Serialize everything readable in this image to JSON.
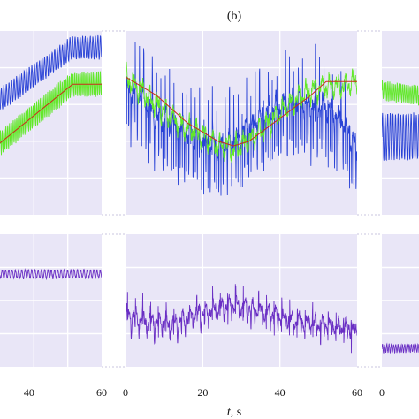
{
  "panel_label": "(b)",
  "xlabel_var": "t",
  "xlabel_unit": ", s",
  "colors": {
    "background": "#e9e6f7",
    "grid": "#ffffff",
    "blue": "#2a43d6",
    "green": "#62e82a",
    "red": "#cc2a1a",
    "purple": "#6a2fc4"
  },
  "chart_data": [
    {
      "type": "line",
      "panel": "left-top",
      "xlim": [
        32,
        60
      ],
      "ylim": [
        -1,
        1
      ],
      "grid": true,
      "xticks": [
        40,
        60
      ],
      "series": [
        {
          "color": "blue",
          "kind": "ramp-oscillation",
          "x": [
            32,
            52,
            60
          ],
          "center": [
            0.25,
            0.82,
            0.82
          ],
          "amplitude": 0.12,
          "period": 0.7
        },
        {
          "color": "green",
          "kind": "ramp-oscillation",
          "x": [
            32,
            52,
            60
          ],
          "center": [
            -0.22,
            0.42,
            0.42
          ],
          "amplitude": 0.13,
          "period": 0.5
        },
        {
          "color": "red",
          "kind": "line",
          "x": [
            32,
            52,
            60
          ],
          "y": [
            -0.22,
            0.42,
            0.42
          ]
        }
      ]
    },
    {
      "type": "line",
      "panel": "mid-top",
      "xlim": [
        0,
        60
      ],
      "ylim": [
        -1,
        1
      ],
      "grid": true,
      "xticks": [
        0,
        20,
        40,
        60
      ],
      "series": [
        {
          "color": "blue",
          "kind": "noisy",
          "x": [
            0,
            4,
            8,
            12,
            16,
            20,
            24,
            28,
            32,
            36,
            40,
            44,
            48,
            52,
            56,
            60
          ],
          "y": [
            0.4,
            0.3,
            0.05,
            0.0,
            -0.1,
            -0.2,
            -0.25,
            -0.2,
            -0.05,
            0.1,
            0.2,
            0.25,
            0.2,
            0.15,
            0.05,
            -0.3
          ],
          "spikes": 18
        },
        {
          "color": "green",
          "kind": "noisy",
          "x": [
            0,
            4,
            8,
            12,
            16,
            20,
            24,
            28,
            32,
            36,
            40,
            44,
            48,
            52,
            56,
            60
          ],
          "y": [
            0.5,
            0.35,
            0.2,
            0.05,
            -0.05,
            -0.15,
            -0.25,
            -0.28,
            -0.2,
            -0.05,
            0.1,
            0.25,
            0.35,
            0.4,
            0.4,
            0.45
          ],
          "spikes": 0
        },
        {
          "color": "red",
          "kind": "line",
          "x": [
            0,
            8,
            16,
            24,
            28,
            32,
            40,
            48,
            52,
            60
          ],
          "y": [
            0.5,
            0.3,
            0.0,
            -0.2,
            -0.25,
            -0.2,
            0.05,
            0.3,
            0.45,
            0.45
          ]
        }
      ]
    },
    {
      "type": "line",
      "panel": "right-top",
      "xlim": [
        0,
        10
      ],
      "ylim": [
        -1,
        1
      ],
      "grid": true,
      "xticks": [
        0
      ],
      "series": [
        {
          "color": "blue",
          "kind": "oscillation",
          "x": [
            0,
            10
          ],
          "center": [
            -0.15,
            -0.15
          ],
          "amplitude": 0.25,
          "period": 0.7
        },
        {
          "color": "green",
          "kind": "oscillation",
          "x": [
            0,
            10
          ],
          "center": [
            0.35,
            0.3
          ],
          "amplitude": 0.1,
          "period": 0.5
        }
      ]
    },
    {
      "type": "line",
      "panel": "left-bottom",
      "xlim": [
        32,
        60
      ],
      "ylim": [
        -1,
        1
      ],
      "grid": true,
      "series": [
        {
          "color": "purple",
          "kind": "oscillation",
          "x": [
            32,
            60
          ],
          "center": [
            0.4,
            0.4
          ],
          "amplitude": 0.06,
          "period": 0.9
        }
      ]
    },
    {
      "type": "line",
      "panel": "mid-bottom",
      "xlim": [
        0,
        60
      ],
      "ylim": [
        -1,
        1
      ],
      "grid": true,
      "series": [
        {
          "color": "purple",
          "kind": "noisy",
          "x": [
            0,
            6,
            12,
            18,
            24,
            28,
            32,
            38,
            44,
            50,
            56,
            60
          ],
          "y": [
            -0.2,
            -0.3,
            -0.35,
            -0.2,
            -0.1,
            -0.05,
            -0.1,
            -0.2,
            -0.3,
            -0.35,
            -0.4,
            -0.45
          ],
          "spikes": 10
        }
      ]
    },
    {
      "type": "line",
      "panel": "right-bottom",
      "xlim": [
        0,
        10
      ],
      "ylim": [
        -1,
        1
      ],
      "grid": true,
      "series": [
        {
          "color": "purple",
          "kind": "oscillation",
          "x": [
            0,
            10
          ],
          "center": [
            -0.72,
            -0.72
          ],
          "amplitude": 0.06,
          "period": 0.6
        }
      ]
    }
  ]
}
